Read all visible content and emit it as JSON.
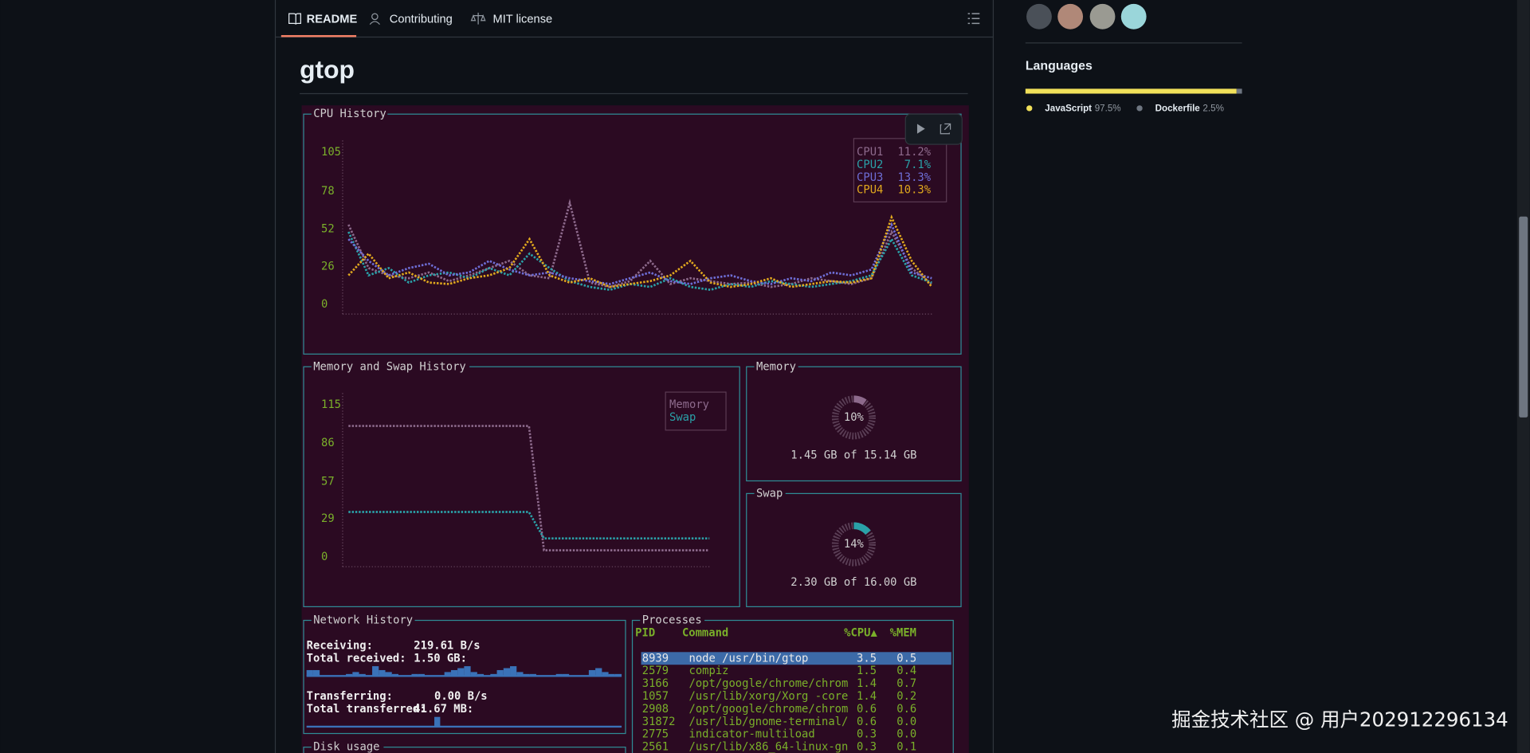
{
  "tabs": [
    "README",
    "Contributing",
    "MIT license"
  ],
  "readme": {
    "title": "gtop"
  },
  "sidebar": {
    "languages_title": "Languages",
    "languages": [
      {
        "name": "JavaScript",
        "percent": 97.5,
        "label": "97.5%",
        "color": "#f1e05a"
      },
      {
        "name": "Dockerfile",
        "percent": 2.5,
        "label": "2.5%",
        "color": "#6e7681"
      }
    ]
  },
  "gtop": {
    "cpu_history": {
      "title": "CPU History",
      "ylim": [
        0,
        105
      ],
      "yticks": [
        0,
        26,
        52,
        78,
        105
      ],
      "series": [
        {
          "name": "CPU1",
          "current": "11.2%",
          "color": "#8d6a8c",
          "values": [
            55,
            25,
            20,
            18,
            22,
            16,
            20,
            25,
            30,
            20,
            18,
            70,
            15,
            12,
            16,
            30,
            14,
            18,
            16,
            14,
            15,
            12,
            14,
            18,
            16,
            14,
            18,
            50,
            25,
            14
          ]
        },
        {
          "name": "CPU2",
          "current": "7.1%",
          "color": "#2aa1a8",
          "values": [
            50,
            20,
            25,
            15,
            20,
            22,
            18,
            25,
            20,
            35,
            25,
            16,
            12,
            10,
            14,
            12,
            18,
            12,
            10,
            14,
            12,
            16,
            14,
            12,
            14,
            16,
            20,
            45,
            20,
            15
          ]
        },
        {
          "name": "CPU3",
          "current": "13.3%",
          "color": "#6e6ed6",
          "values": [
            45,
            30,
            20,
            25,
            28,
            20,
            22,
            30,
            24,
            20,
            22,
            18,
            16,
            14,
            18,
            22,
            16,
            14,
            18,
            20,
            16,
            14,
            18,
            16,
            22,
            20,
            24,
            55,
            22,
            18
          ]
        },
        {
          "name": "CPU4",
          "current": "10.3%",
          "color": "#e0a81e",
          "values": [
            20,
            35,
            18,
            22,
            15,
            14,
            18,
            20,
            25,
            45,
            20,
            15,
            18,
            12,
            14,
            16,
            20,
            30,
            15,
            12,
            14,
            18,
            12,
            14,
            16,
            15,
            18,
            60,
            30,
            12
          ]
        }
      ]
    },
    "memory_history": {
      "title": "Memory and Swap History",
      "ylim": [
        0,
        115
      ],
      "yticks": [
        0,
        29,
        57,
        86,
        115
      ],
      "series": [
        {
          "name": "Memory",
          "color": "#8d6a8c",
          "values": [
            99,
            99,
            99,
            99,
            99,
            99,
            99,
            99,
            99,
            99,
            99,
            99,
            99,
            5,
            5,
            5,
            5,
            5,
            5,
            5,
            5,
            5,
            5,
            5,
            5
          ]
        },
        {
          "name": "Swap",
          "color": "#2aa1a8",
          "values": [
            34,
            34,
            34,
            34,
            34,
            34,
            34,
            34,
            34,
            34,
            34,
            34,
            34,
            14,
            14,
            14,
            14,
            14,
            14,
            14,
            14,
            14,
            14,
            14,
            14
          ]
        }
      ]
    },
    "memory": {
      "title": "Memory",
      "percent": 10,
      "percent_label": "10%",
      "detail": "1.45 GB of 15.14 GB"
    },
    "swap": {
      "title": "Swap",
      "percent": 14,
      "percent_label": "14%",
      "detail": "2.30 GB of 16.00 GB"
    },
    "network": {
      "title": "Network History",
      "receiving_label": "Receiving:",
      "receiving_value": "219.61  B/s",
      "total_received_label": "Total received:",
      "total_received_value": "1.50 GB:",
      "receiving_history": [
        3,
        3,
        0,
        0,
        0,
        0,
        1,
        2,
        1,
        0,
        5,
        3,
        2,
        1,
        0,
        0,
        1,
        1,
        0,
        0,
        0,
        2,
        3,
        4,
        5,
        2,
        1,
        0,
        1,
        3,
        4,
        5,
        2,
        1,
        1,
        0,
        0,
        0,
        1,
        1,
        0,
        0,
        0,
        3,
        4,
        2,
        1,
        1
      ],
      "transferring_label": "Transferring:",
      "transferring_value": "0.00 B/s",
      "total_transferred_label": "Total transferred:",
      "total_transferred_value": "41.67 MB:"
    },
    "disk": {
      "title": "Disk usage"
    },
    "processes": {
      "title": "Processes",
      "columns": [
        "PID",
        "Command",
        "%CPU▲",
        "%MEM"
      ],
      "rows": [
        [
          "8939",
          "node /usr/bin/gtop",
          "3.5",
          "0.5"
        ],
        [
          "2579",
          "compiz",
          "1.5",
          "0.4"
        ],
        [
          "3166",
          "/opt/google/chrome/chrom",
          "1.4",
          "0.7"
        ],
        [
          "1057",
          "/usr/lib/xorg/Xorg -core",
          "1.4",
          "0.2"
        ],
        [
          "2908",
          "/opt/google/chrome/chrom",
          "0.6",
          "0.6"
        ],
        [
          "31872",
          "/usr/lib/gnome-terminal/",
          "0.6",
          "0.0"
        ],
        [
          "2775",
          "indicator-multiload",
          "0.3",
          "0.0"
        ],
        [
          "2561",
          "/usr/lib/x86_64-linux-gn",
          "0.3",
          "0.1"
        ]
      ]
    }
  },
  "watermark": "掘金技术社区 @ 用户202912296134"
}
